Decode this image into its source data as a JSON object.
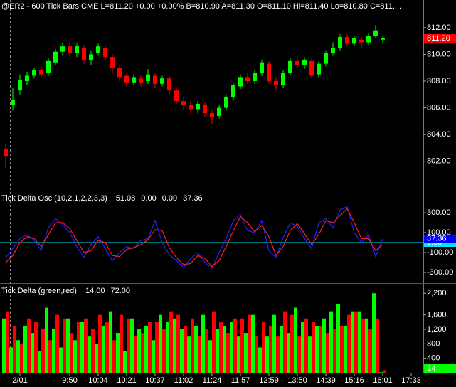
{
  "chart_data": [
    {
      "type": "candlestick",
      "title": "@ER2 - 600 Tick Bars  CME  L=811.20  +0.00  +0.00%  B=810.90  A=811.30  O=811.10  Hi=811.40  Lo=810.80  C=811....",
      "title_color": "#00ff00",
      "open": [
        802.9,
        806.2,
        807.3,
        808.0,
        808.4,
        808.8,
        808.6,
        809.4,
        810.2,
        810.6,
        810.1,
        810.5,
        809.6,
        810.1,
        810.5,
        809.8,
        809.0,
        808.4,
        807.9,
        808.2,
        808.0,
        808.4,
        807.8,
        808.2,
        807.3,
        806.5,
        806.2,
        805.9,
        806.2,
        805.6,
        805.4,
        806.0,
        806.8,
        807.6,
        808.3,
        808.0,
        808.6,
        809.3,
        808.0,
        807.7,
        808.6,
        809.5,
        809.2,
        809.5,
        808.5,
        809.3,
        810.1,
        810.5,
        811.3,
        810.8,
        811.1,
        810.9,
        811.4,
        811.1,
        null,
        null,
        null,
        null
      ],
      "high": [
        803.3,
        807.5,
        808.5,
        808.7,
        809.0,
        809.1,
        809.7,
        810.4,
        810.9,
        810.9,
        810.8,
        810.7,
        810.3,
        810.8,
        810.7,
        810.0,
        809.2,
        808.6,
        808.5,
        808.4,
        808.9,
        808.6,
        808.4,
        808.4,
        807.5,
        806.8,
        806.5,
        806.5,
        806.4,
        805.9,
        806.2,
        807.0,
        807.9,
        808.5,
        808.6,
        808.8,
        809.6,
        809.5,
        808.3,
        808.8,
        809.7,
        809.8,
        809.8,
        809.7,
        809.5,
        810.3,
        810.9,
        811.5,
        811.5,
        811.4,
        811.3,
        811.6,
        812.2,
        811.4,
        null,
        null,
        null,
        null
      ],
      "low": [
        801.5,
        805.8,
        807.0,
        807.7,
        808.2,
        808.3,
        808.4,
        809.2,
        809.9,
        809.8,
        809.8,
        809.3,
        809.2,
        809.9,
        809.6,
        808.6,
        808.0,
        807.6,
        807.7,
        807.6,
        807.8,
        807.5,
        807.6,
        807.0,
        806.3,
        805.9,
        805.6,
        805.6,
        805.3,
        804.8,
        805.2,
        805.8,
        806.6,
        807.4,
        807.8,
        807.8,
        808.4,
        807.8,
        807.3,
        807.5,
        808.4,
        809.0,
        808.9,
        808.2,
        808.3,
        809.1,
        809.9,
        810.3,
        810.6,
        810.6,
        810.5,
        810.7,
        811.2,
        810.8,
        null,
        null,
        null,
        null
      ],
      "close": [
        802.4,
        806.6,
        808.1,
        808.4,
        808.8,
        808.5,
        809.5,
        810.2,
        810.6,
        810.1,
        810.6,
        809.6,
        810.0,
        810.6,
        809.8,
        809.0,
        808.3,
        807.9,
        808.3,
        807.9,
        808.5,
        807.8,
        808.2,
        807.3,
        806.5,
        806.2,
        805.9,
        806.3,
        805.6,
        805.3,
        806.0,
        806.8,
        807.7,
        808.3,
        808.0,
        808.6,
        809.4,
        808.0,
        807.7,
        808.6,
        809.5,
        809.2,
        809.6,
        808.4,
        809.3,
        810.1,
        810.5,
        811.3,
        810.8,
        811.2,
        810.9,
        811.4,
        811.8,
        811.2,
        null,
        null,
        null,
        null
      ],
      "up_color": "#00ff00",
      "down_color": "#ff0000",
      "ylim": [
        799.8,
        814.07
      ],
      "yticks": [
        {
          "value": 812,
          "label": "812.00"
        },
        {
          "value": 810,
          "label": "810.00"
        },
        {
          "value": 808,
          "label": "808.00"
        },
        {
          "value": 806,
          "label": "806.00"
        },
        {
          "value": 804,
          "label": "804.00"
        },
        {
          "value": 802,
          "label": "802.00"
        }
      ],
      "last_label": {
        "value": 811.2,
        "label": "811.20",
        "color": "#ff0000"
      }
    },
    {
      "type": "line",
      "title": "Tick Delta Osc  (10,2,1,2,2,3,3)",
      "readouts": [
        {
          "label": "51.08",
          "color": "#3344ff"
        },
        {
          "label": "0.00",
          "color": "#00e5ff"
        },
        {
          "label": "0.00",
          "color": "#00e5ff"
        },
        {
          "label": "37.36",
          "color": "#3344ff"
        }
      ],
      "series": [
        {
          "color": "#2222ff",
          "values": [
            -150,
            -60,
            40,
            80,
            20,
            -80,
            150,
            240,
            180,
            100,
            -40,
            -150,
            -20,
            60,
            -60,
            -180,
            -100,
            -40,
            -60,
            20,
            40,
            220,
            0,
            -120,
            -180,
            -250,
            -160,
            -100,
            -200,
            -260,
            -100,
            40,
            220,
            280,
            120,
            100,
            220,
            -80,
            -150,
            50,
            200,
            160,
            40,
            -60,
            200,
            240,
            150,
            330,
            360,
            100,
            0,
            80,
            -140,
            37.36,
            null,
            null,
            null,
            null
          ]
        },
        {
          "color": "#ff2020",
          "values": [
            -200,
            -130,
            0,
            60,
            40,
            -40,
            80,
            200,
            200,
            140,
            20,
            -100,
            -80,
            20,
            0,
            -130,
            -140,
            -70,
            -50,
            -20,
            30,
            130,
            120,
            -50,
            -150,
            -220,
            -210,
            -130,
            -160,
            -240,
            -180,
            -40,
            120,
            260,
            200,
            110,
            170,
            60,
            -130,
            -40,
            120,
            190,
            90,
            -20,
            80,
            220,
            200,
            270,
            340,
            200,
            40,
            40,
            -80,
            -20,
            null,
            null,
            null,
            null
          ]
        }
      ],
      "ylim": [
        -407,
        507
      ],
      "yticks": [
        {
          "value": 300,
          "label": "300.00"
        },
        {
          "value": 100,
          "label": "100.00"
        },
        {
          "value": -100,
          "label": "-100.00"
        },
        {
          "value": -300,
          "label": "-300.00"
        }
      ],
      "zero_line": {
        "value": 0,
        "label": "0.00",
        "color": "#00e5ff"
      },
      "last_label": {
        "value": 37.36,
        "label": "37.36",
        "color": "#0000ff"
      }
    },
    {
      "type": "bar",
      "title": "Tick Delta  (green,red)",
      "readouts": [
        {
          "label": "14.00",
          "color": "#00ff00"
        },
        {
          "label": "72.00",
          "color": "#ff0000"
        }
      ],
      "categories": [
        null,
        null,
        "2/01",
        null,
        null,
        null,
        null,
        null,
        null,
        "9:50",
        null,
        null,
        null,
        "10:04",
        null,
        null,
        null,
        "10:21",
        null,
        null,
        null,
        "10:37",
        null,
        null,
        null,
        "11:02",
        null,
        null,
        null,
        "11:24",
        null,
        null,
        null,
        "11:57",
        null,
        null,
        null,
        "12:59",
        null,
        null,
        null,
        "13:50",
        null,
        null,
        null,
        "14:39",
        null,
        null,
        null,
        "15:16",
        null,
        null,
        null,
        "16:01",
        null,
        null,
        null,
        "17:33"
      ],
      "series": [
        {
          "color": "#00ff00",
          "values": [
            1500,
            700,
            900,
            1300,
            1100,
            600,
            1800,
            1200,
            700,
            1500,
            900,
            1400,
            1000,
            800,
            1300,
            1700,
            1100,
            600,
            1500,
            1200,
            1300,
            900,
            1600,
            1400,
            1500,
            1200,
            1000,
            1300,
            1600,
            900,
            1200,
            1300,
            1400,
            1000,
            1100,
            1600,
            700,
            1000,
            1600,
            1300,
            1100,
            1800,
            1400,
            1000,
            1300,
            1500,
            1700,
            1900,
            1300,
            1700,
            1700,
            1500,
            2200,
            14,
            null,
            null,
            null,
            null
          ]
        },
        {
          "color": "#ff0000",
          "values": [
            1700,
            1300,
            800,
            1500,
            1400,
            1200,
            900,
            1600,
            1500,
            1100,
            1400,
            1500,
            1200,
            1600,
            1400,
            900,
            1600,
            1500,
            1000,
            1100,
            1400,
            1400,
            1200,
            1700,
            1600,
            1300,
            1500,
            1000,
            1200,
            1700,
            1400,
            1100,
            1500,
            1500,
            1600,
            1000,
            1400,
            1300,
            1000,
            1700,
            1600,
            1000,
            1500,
            1400,
            1300,
            1100,
            1200,
            1300,
            1600,
            1700,
            1500,
            1200,
            1500,
            72,
            null,
            null,
            null,
            null
          ]
        }
      ],
      "ylim": [
        0,
        2440
      ],
      "yticks": [
        {
          "value": 2200,
          "label": "2,200"
        },
        {
          "value": 1600,
          "label": "1,600"
        },
        {
          "value": 1200,
          "label": "1,200"
        },
        800,
        400
      ],
      "last_label": {
        "value": 14,
        "label": "14",
        "color": "#00ff00"
      }
    }
  ]
}
